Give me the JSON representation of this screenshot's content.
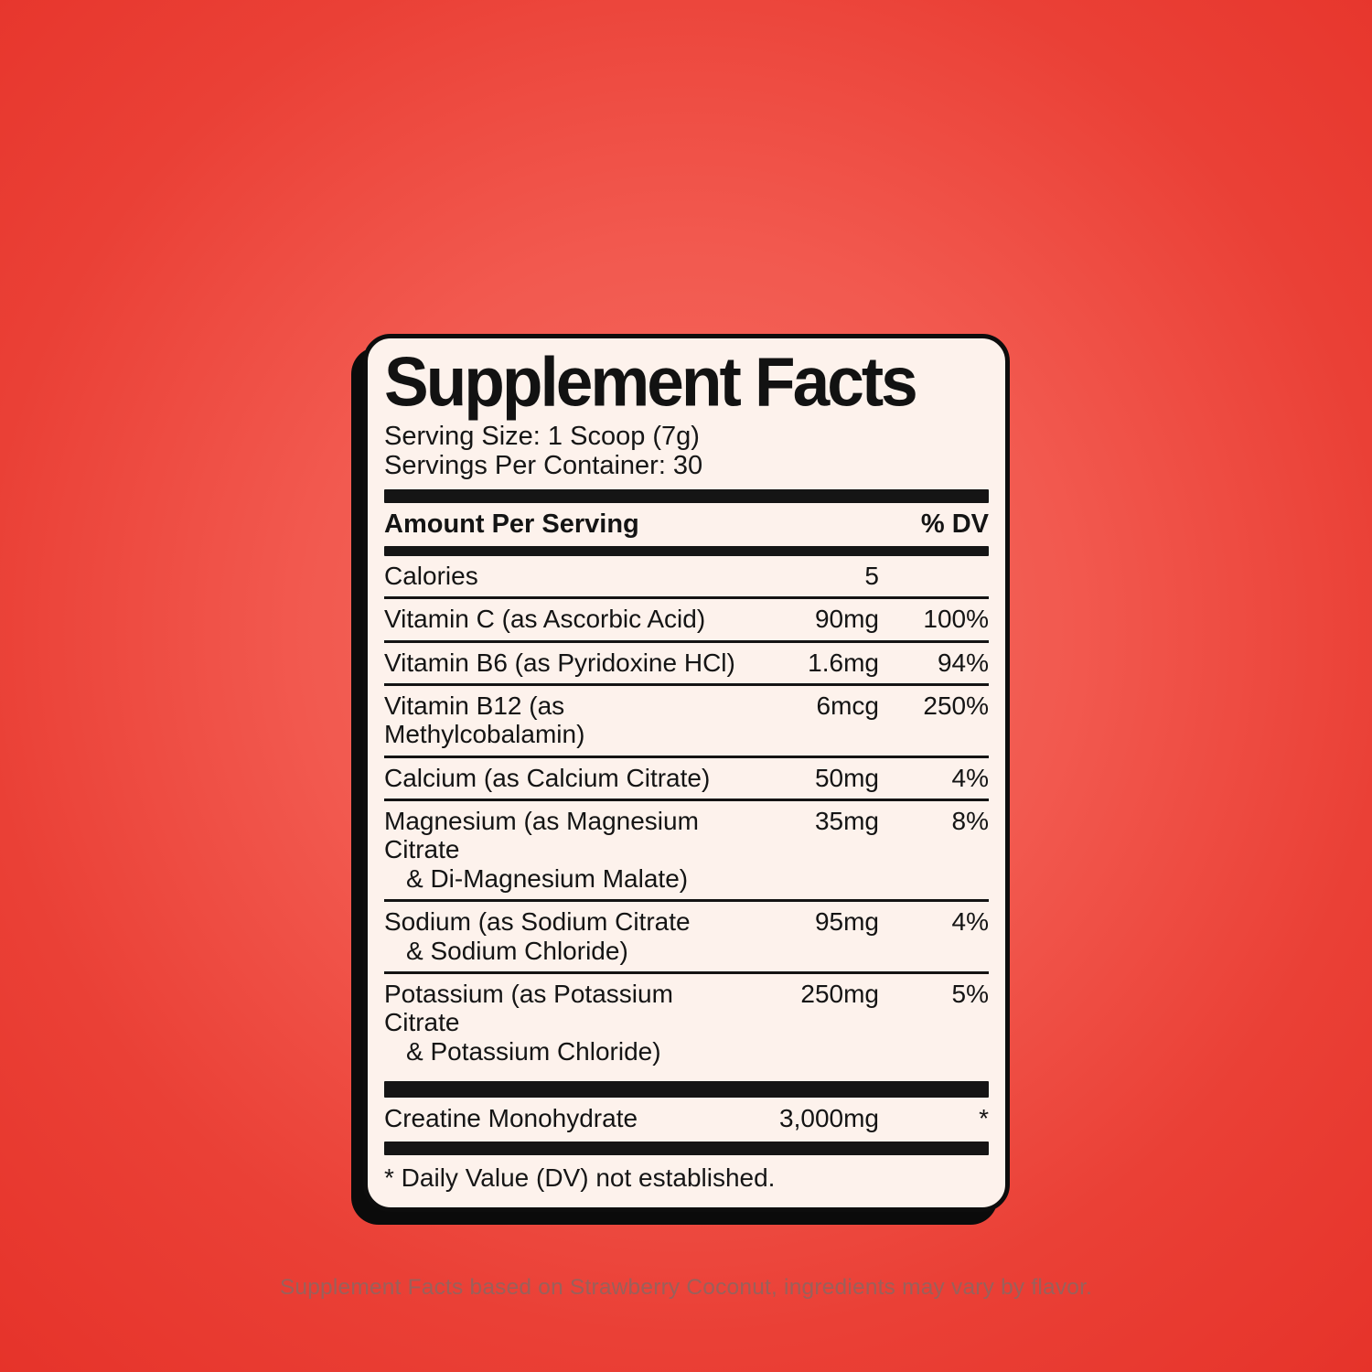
{
  "page": {
    "caption": "Supplement Facts based on Strawberry Coconut, ingredients may vary by flavor."
  },
  "colors": {
    "background_center": "#f66e63",
    "background_edge": "#e6332a",
    "card_background": "#fdf2ec",
    "card_border": "#0d0d0d",
    "text": "#141414",
    "caption_text": "#99615b"
  },
  "label": {
    "title": "Supplement Facts",
    "serving_size": "Serving Size: 1 Scoop (7g)",
    "servings_per_container": "Servings Per Container: 30",
    "header": {
      "amount_per_serving": "Amount Per Serving",
      "percent_dv": "% DV"
    },
    "rows": [
      {
        "name": "Calories",
        "name2": "",
        "amount": "5",
        "dv": ""
      },
      {
        "name": "Vitamin C (as Ascorbic Acid)",
        "name2": "",
        "amount": "90mg",
        "dv": "100%"
      },
      {
        "name": "Vitamin B6 (as Pyridoxine HCl)",
        "name2": "",
        "amount": "1.6mg",
        "dv": "94%"
      },
      {
        "name": "Vitamin B12 (as Methylcobalamin)",
        "name2": "",
        "amount": "6mcg",
        "dv": "250%"
      },
      {
        "name": "Calcium (as Calcium Citrate)",
        "name2": "",
        "amount": "50mg",
        "dv": "4%"
      },
      {
        "name": "Magnesium (as Magnesium Citrate",
        "name2": "& Di-Magnesium Malate)",
        "amount": "35mg",
        "dv": "8%"
      },
      {
        "name": "Sodium (as Sodium Citrate",
        "name2": "& Sodium Chloride)",
        "amount": "95mg",
        "dv": "4%"
      },
      {
        "name": "Potassium (as Potassium Citrate",
        "name2": "& Potassium Chloride)",
        "amount": "250mg",
        "dv": "5%"
      }
    ],
    "creatine": {
      "name": "Creatine Monohydrate",
      "amount": "3,000mg",
      "dv": "*"
    },
    "footnote": "* Daily Value (DV) not established."
  }
}
